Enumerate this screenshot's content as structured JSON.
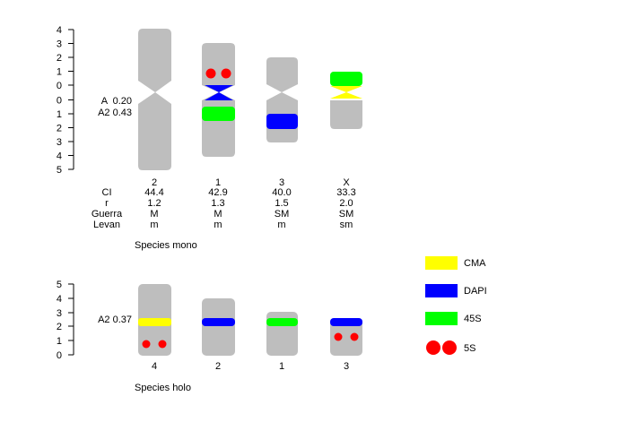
{
  "colors": {
    "chromosome": "#bebebe",
    "CMA": "#ffff00",
    "DAPI": "#0000ff",
    "45S": "#00ff00",
    "5S": "#ff0000"
  },
  "panels": [
    {
      "id": "mono",
      "title": "Species mono",
      "ticks_short": [
        "4",
        "3",
        "2",
        "1",
        "0"
      ],
      "ticks_long": [
        "0",
        "1",
        "2",
        "3",
        "4",
        "5"
      ],
      "indices": [
        "A  0.20",
        "A2 0.43"
      ],
      "chromosomes": [
        "2",
        "1",
        "3",
        "X"
      ],
      "row_labels": [
        "CI",
        "r",
        "Guerra",
        "Levan"
      ],
      "table": [
        [
          "44.4",
          "1.2",
          "M",
          "m"
        ],
        [
          "42.9",
          "1.3",
          "M",
          "m"
        ],
        [
          "40.0",
          "1.5",
          "SM",
          "m"
        ],
        [
          "33.3",
          "2.0",
          "SM",
          "sm"
        ]
      ]
    },
    {
      "id": "holo",
      "title": "Species holo",
      "ticks": [
        "5",
        "4",
        "3",
        "2",
        "1",
        "0"
      ],
      "indices": [
        "A2 0.37"
      ],
      "chromosomes": [
        "4",
        "2",
        "1",
        "3"
      ]
    }
  ],
  "legend": [
    {
      "label": "CMA",
      "icon": "yellow-bar"
    },
    {
      "label": "DAPI",
      "icon": "blue-bar"
    },
    {
      "label": "45S",
      "icon": "green-bar"
    },
    {
      "label": "5S",
      "icon": "red-dots"
    }
  ]
}
